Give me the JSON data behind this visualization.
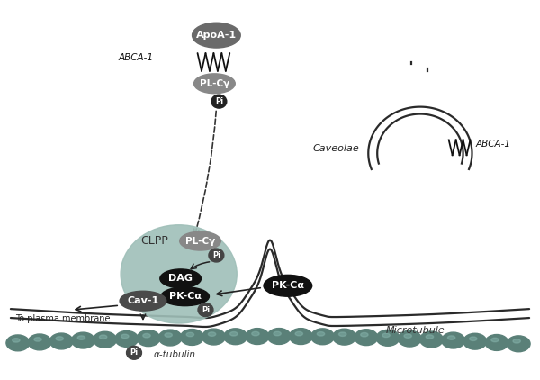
{
  "bg_color": "#ffffff",
  "gray_mem": "#2a2a2a",
  "apoa1_color": "#6a6a6a",
  "plcg_color": "#888888",
  "pi_dark_color": "#222222",
  "clpp_color": "#9fbfb8",
  "dag_color": "#111111",
  "pkcalpha_color": "#111111",
  "cav1_color": "#4a4a4a",
  "pkca_outer_color": "#111111",
  "bead_color": "#5a8078",
  "bead_highlight": "#8ab8b0",
  "lw_mem": 1.6,
  "labels": {
    "apoa1": "ApoA-1",
    "abca1_top": "ABCA-1",
    "plcg_top": "PL-Cγ",
    "pi_top": "Pi",
    "caveolae": "Caveolae",
    "abca1_cav": "ABCA-1",
    "clpp": "CLPP",
    "plcg_clpp": "PL-Cγ",
    "pi_clpp": "Pi",
    "dag": "DAG",
    "pkcalpha_inner": "PK-Cα",
    "pi_bottom": "Pi",
    "cav1": "Cav-1",
    "pkca": "PK-Cα",
    "to_plasma": "To plasma membrane",
    "microtubule": "Microtubule",
    "alpha_tubulin": "α-tubulin",
    "pi_tubulin": "Pi"
  }
}
